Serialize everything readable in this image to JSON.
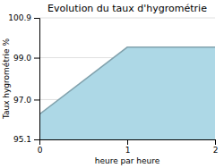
{
  "chart_data": {
    "type": "area",
    "title": "Evolution du taux d'hygrométrie",
    "xlabel": "heure par heure",
    "ylabel": "Taux hygrométrie %",
    "x": [
      0,
      1,
      2
    ],
    "values": [
      96.3,
      99.5,
      99.5
    ],
    "color": "#add8e6",
    "xlim": [
      0,
      2
    ],
    "ylim": [
      95.1,
      100.9
    ],
    "xticks": [
      0,
      1,
      2
    ],
    "yticks": [
      {
        "value": 95.1,
        "label": "95.1"
      },
      {
        "value": 97.0,
        "label": "97.0"
      },
      {
        "value": 99.0,
        "label": "99.0"
      },
      {
        "value": 100.9,
        "label": "100.9"
      }
    ],
    "grid": true
  }
}
